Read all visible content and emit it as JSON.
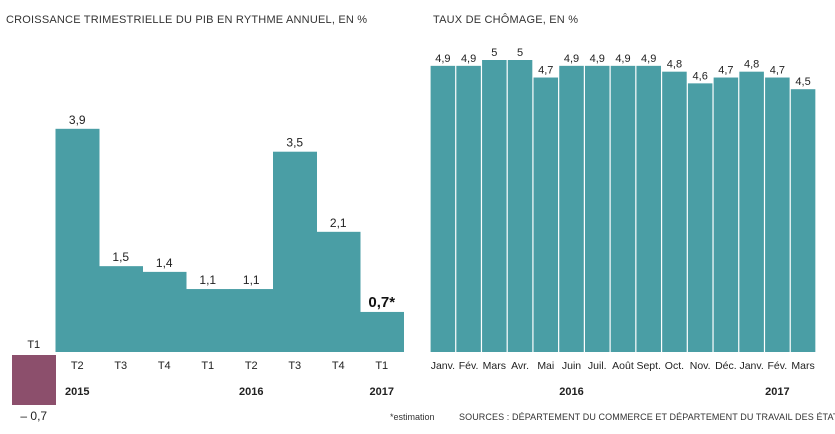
{
  "chart_data": [
    {
      "type": "bar",
      "title": "CROISSANCE TRIMESTRIELLE DU PIB EN RYTHME ANNUEL, EN %",
      "categories": [
        "T1",
        "T2",
        "T3",
        "T4",
        "T1",
        "T2",
        "T3",
        "T4",
        "T1"
      ],
      "years": [
        {
          "label": "2015",
          "under_index": 1
        },
        {
          "label": "2016",
          "under_index": 5
        },
        {
          "label": "2017",
          "under_index": 8
        }
      ],
      "values": [
        -0.7,
        3.9,
        1.5,
        1.4,
        1.1,
        1.1,
        3.5,
        2.1,
        0.7
      ],
      "value_labels": [
        "– 0,7",
        "3,9",
        "1,5",
        "1,4",
        "1,1",
        "1,1",
        "3,5",
        "2,1",
        "0,7*"
      ],
      "highlight_index": 8,
      "colors": {
        "positive": "#4a9ea5",
        "negative": "#8c4f6c"
      }
    },
    {
      "type": "bar",
      "title": "TAUX DE CHÔMAGE, EN %",
      "categories": [
        "Janv.",
        "Fév.",
        "Mars",
        "Avr.",
        "Mai",
        "Juin",
        "Juil.",
        "Août",
        "Sept.",
        "Oct.",
        "Nov.",
        "Déc.",
        "Janv.",
        "Fév.",
        "Mars"
      ],
      "years": [
        {
          "label": "2016",
          "under_index": 5
        },
        {
          "label": "2017",
          "under_index": 13
        }
      ],
      "values": [
        4.9,
        4.9,
        5.0,
        5.0,
        4.7,
        4.9,
        4.9,
        4.9,
        4.9,
        4.8,
        4.6,
        4.7,
        4.8,
        4.7,
        4.5
      ],
      "value_labels": [
        "4,9",
        "4,9",
        "5",
        "5",
        "4,7",
        "4,9",
        "4,9",
        "4,9",
        "4,9",
        "4,8",
        "4,6",
        "4,7",
        "4,8",
        "4,7",
        "4,5"
      ],
      "colors": {
        "bar": "#4a9ea5"
      }
    }
  ],
  "footer": {
    "note": "*estimation",
    "sources": "SOURCES : DÉPARTEMENT DU COMMERCE ET DÉPARTEMENT DU TRAVAIL DES ÉTATS-UNIS"
  }
}
